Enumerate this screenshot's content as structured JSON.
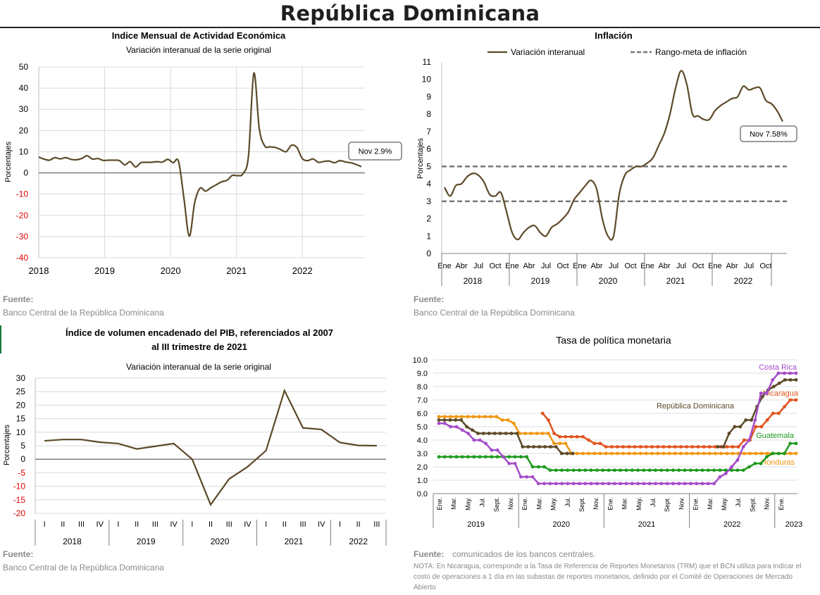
{
  "page": {
    "title": "República Dominicana"
  },
  "sources": {
    "imae": {
      "label": "Fuente:",
      "text": "Banco Central de la República Dominicana"
    },
    "inflacion": {
      "label": "Fuente:",
      "text": "Banco Central de la República Dominicana"
    },
    "pib": {
      "label": "Fuente:",
      "text": "Banco Central de la República Dominicana"
    },
    "tpm": {
      "label": "Fuente:",
      "text": "comunicados de los bancos centrales.",
      "note": "NOTA: En Nicaragua, corresponde a la Tasa de Referencia de Reportes Monetarios (TRM) que el BCN utiliza para indicar el costo de operaciones a 1 día en las subastas de reportes monetarios, definido por el Comité de Operaciones de Mercado Abierto"
    }
  },
  "chart_data": [
    {
      "id": "imae",
      "type": "line",
      "title": "Indice Mensual de  Actividad Económica",
      "subtitle": "Variación interanual de la serie original",
      "ylabel": "Porcentajes",
      "ylim": [
        -40,
        50
      ],
      "yticks": [
        50,
        40,
        30,
        20,
        10,
        0,
        -10,
        -20,
        -30,
        -40
      ],
      "xticks": [
        "2018",
        "2019",
        "2020",
        "2021",
        "2022"
      ],
      "grid": true,
      "color": "#5c4a28",
      "annotation": "Nov 2.9%",
      "series": [
        {
          "values": [
            7.5,
            6.5,
            6,
            7.2,
            6.6,
            7.2,
            6.4,
            6.2,
            6.8,
            8.1,
            6.5,
            6.8,
            5.9,
            6,
            6,
            5.8,
            3.8,
            5.3,
            2.8,
            4.8,
            5,
            5,
            5.3,
            5.1,
            6.4,
            4.8,
            5.4,
            -12,
            -29.8,
            -14,
            -7.2,
            -8.6,
            -7,
            -5.6,
            -4.2,
            -3.5,
            -1.2,
            -1.3,
            -0.3,
            8,
            47,
            21,
            12.8,
            12.3,
            12,
            11,
            10,
            13,
            12,
            6.8,
            5.8,
            6.6,
            5,
            5.4,
            5.6,
            4.8,
            5.8,
            5.2,
            4.8,
            4,
            2.9
          ]
        }
      ]
    },
    {
      "id": "inflacion",
      "type": "line",
      "title": "Inflación",
      "ylabel": "Porcentajes",
      "ylim": [
        0,
        11
      ],
      "yticks": [
        11,
        10,
        9,
        8,
        7,
        6,
        5,
        4,
        3,
        2,
        1,
        0
      ],
      "month_ticks": [
        "Ene",
        "Abr",
        "Jul",
        "Oct"
      ],
      "years": [
        "2018",
        "2019",
        "2020",
        "2021",
        "2022"
      ],
      "legend": [
        {
          "label": "Variación interanual"
        },
        {
          "label": "Rango-meta de inflación"
        }
      ],
      "legend_position": "top",
      "annotation": "Nov 7.58%",
      "target_range": [
        3,
        5
      ],
      "colors": {
        "line": "#5c4a28",
        "target": "#777777"
      },
      "series": [
        {
          "name": "Variación interanual",
          "values": [
            3.8,
            3.3,
            3.9,
            4.0,
            4.4,
            4.6,
            4.5,
            4.1,
            3.4,
            3.3,
            3.5,
            2.4,
            1.2,
            0.8,
            1.2,
            1.5,
            1.6,
            1.2,
            1.0,
            1.5,
            1.7,
            2.0,
            2.4,
            3.1,
            3.5,
            3.9,
            4.2,
            3.7,
            2.0,
            1.0,
            1.0,
            3.4,
            4.5,
            4.8,
            5.0,
            5.0,
            5.2,
            5.5,
            6.2,
            6.9,
            8.0,
            9.5,
            10.5,
            9.7,
            8.0,
            7.9,
            7.7,
            7.7,
            8.2,
            8.5,
            8.7,
            8.9,
            9.0,
            9.6,
            9.4,
            9.5,
            9.5,
            8.8,
            8.6,
            8.2,
            7.58
          ]
        }
      ]
    },
    {
      "id": "pib",
      "type": "line",
      "title": "Índice de volumen encadenado del PIB, referenciados al 2007 al III trimestre de 2021",
      "subtitle": "Variación interanual de la serie original",
      "ylabel": "Porcentajes",
      "ylim": [
        -20,
        30
      ],
      "yticks": [
        30,
        25,
        20,
        15,
        10,
        5,
        0,
        -5,
        -10,
        -15,
        -20
      ],
      "quarters": [
        "I",
        "II",
        "III",
        "IV"
      ],
      "years": [
        "2018",
        "2019",
        "2020",
        "2021",
        "2022"
      ],
      "color": "#5c4a28",
      "series": [
        {
          "values": [
            6.8,
            7.3,
            7.3,
            6.3,
            5.8,
            3.8,
            4.8,
            5.8,
            0,
            -16.8,
            -7.3,
            -2.8,
            3.2,
            25.4,
            11.6,
            11,
            6.2,
            5.1,
            5
          ]
        }
      ]
    },
    {
      "id": "tpm",
      "type": "line",
      "title": "Tasa de política monetaria",
      "ylim": [
        0,
        10
      ],
      "yticks": [
        "10.0",
        "9.0",
        "8.0",
        "7.0",
        "6.0",
        "5.0",
        "4.0",
        "3.0",
        "2.0",
        "1.0",
        "0.0"
      ],
      "month_labels": [
        "Ene.",
        "Mar.",
        "May.",
        "Jul.",
        "Sept.",
        "Nov.",
        "Ene.",
        "Mar.",
        "May.",
        "Jul.",
        "Sept.",
        "Nov.",
        "Ene.",
        "Mar.",
        "May.",
        "Jul.",
        "Sept.",
        "Nov.",
        "Ene.",
        "Mar.",
        "May.",
        "Jul.",
        "Sept.",
        "Nov.",
        "Ene."
      ],
      "years": [
        "2019",
        "2020",
        "2021",
        "2022",
        "2023"
      ],
      "series": [
        {
          "name": "Costa Rica",
          "color": "#a54cc8",
          "values": [
            5.25,
            5.25,
            5,
            5,
            4.75,
            4.5,
            4,
            4,
            3.75,
            3.25,
            3.25,
            2.75,
            2.25,
            2.25,
            1.25,
            1.25,
            1.25,
            0.75,
            0.75,
            0.75,
            0.75,
            0.75,
            0.75,
            0.75,
            0.75,
            0.75,
            0.75,
            0.75,
            0.75,
            0.75,
            0.75,
            0.75,
            0.75,
            0.75,
            0.75,
            0.75,
            0.75,
            0.75,
            0.75,
            0.75,
            0.75,
            0.75,
            0.75,
            0.75,
            0.75,
            0.75,
            0.75,
            0.75,
            1.25,
            1.5,
            2,
            2.5,
            3.5,
            4,
            5.5,
            7.5,
            7.5,
            8.5,
            9,
            9,
            9,
            9
          ]
        },
        {
          "name": "República Dominicana",
          "color": "#5c4a28",
          "values": [
            5.5,
            5.5,
            5.5,
            5.5,
            5.5,
            5,
            4.75,
            4.5,
            4.5,
            4.5,
            4.5,
            4.5,
            4.5,
            4.5,
            4.5,
            3.5,
            3.5,
            3.5,
            3.5,
            3.5,
            3.5,
            3.5,
            3,
            3,
            3,
            null,
            null,
            null,
            null,
            null,
            null,
            null,
            null,
            null,
            null,
            null,
            null,
            null,
            null,
            null,
            null,
            null,
            null,
            null,
            null,
            null,
            null,
            null,
            null,
            null,
            3.5,
            3.5,
            4.5,
            5,
            5,
            5.5,
            5.5,
            6.5,
            7.25,
            7.75,
            8,
            8.25,
            8.5,
            8.5,
            8.5
          ]
        },
        {
          "name": "Nicaragua",
          "color": "#e1531e",
          "values": [
            null,
            null,
            null,
            null,
            null,
            null,
            null,
            null,
            null,
            null,
            null,
            null,
            null,
            null,
            null,
            null,
            null,
            null,
            6,
            5.5,
            4.5,
            4.25,
            4.25,
            4.25,
            4.25,
            4.25,
            4,
            3.75,
            3.75,
            3.5,
            3.5,
            3.5,
            3.5,
            3.5,
            3.5,
            3.5,
            3.5,
            3.5,
            3.5,
            3.5,
            3.5,
            3.5,
            3.5,
            3.5,
            3.5,
            3.5,
            3.5,
            3.5,
            3.5,
            3.5,
            3.5,
            3.5,
            3.5,
            4,
            4,
            5,
            5,
            5.5,
            6,
            6,
            6.5,
            7,
            7
          ]
        },
        {
          "name": "Guatemala",
          "color": "#1f9a1f",
          "values": [
            2.75,
            2.75,
            2.75,
            2.75,
            2.75,
            2.75,
            2.75,
            2.75,
            2.75,
            2.75,
            2.75,
            2.75,
            2.75,
            2.75,
            2.75,
            2.75,
            2,
            2,
            2,
            1.75,
            1.75,
            1.75,
            1.75,
            1.75,
            1.75,
            1.75,
            1.75,
            1.75,
            1.75,
            1.75,
            1.75,
            1.75,
            1.75,
            1.75,
            1.75,
            1.75,
            1.75,
            1.75,
            1.75,
            1.75,
            1.75,
            1.75,
            1.75,
            1.75,
            1.75,
            1.75,
            1.75,
            1.75,
            1.75,
            1.75,
            1.75,
            1.75,
            1.75,
            2,
            2.25,
            2.25,
            2.75,
            3,
            3,
            3,
            3.75,
            3.75
          ]
        },
        {
          "name": "Honduras",
          "color": "#f0960f",
          "values": [
            5.75,
            5.75,
            5.75,
            5.75,
            5.75,
            5.75,
            5.75,
            5.75,
            5.75,
            5.75,
            5.75,
            5.5,
            5.5,
            5.25,
            4.5,
            4.5,
            4.5,
            4.5,
            4.5,
            4.5,
            3.75,
            3.75,
            3.75,
            3,
            3,
            3,
            3,
            3,
            3,
            3,
            3,
            3,
            3,
            3,
            3,
            3,
            3,
            3,
            3,
            3,
            3,
            3,
            3,
            3,
            3,
            3,
            3,
            3,
            3,
            3,
            3,
            3,
            3,
            3,
            3,
            3,
            3,
            3,
            3,
            3,
            3,
            3,
            3
          ]
        }
      ]
    }
  ]
}
